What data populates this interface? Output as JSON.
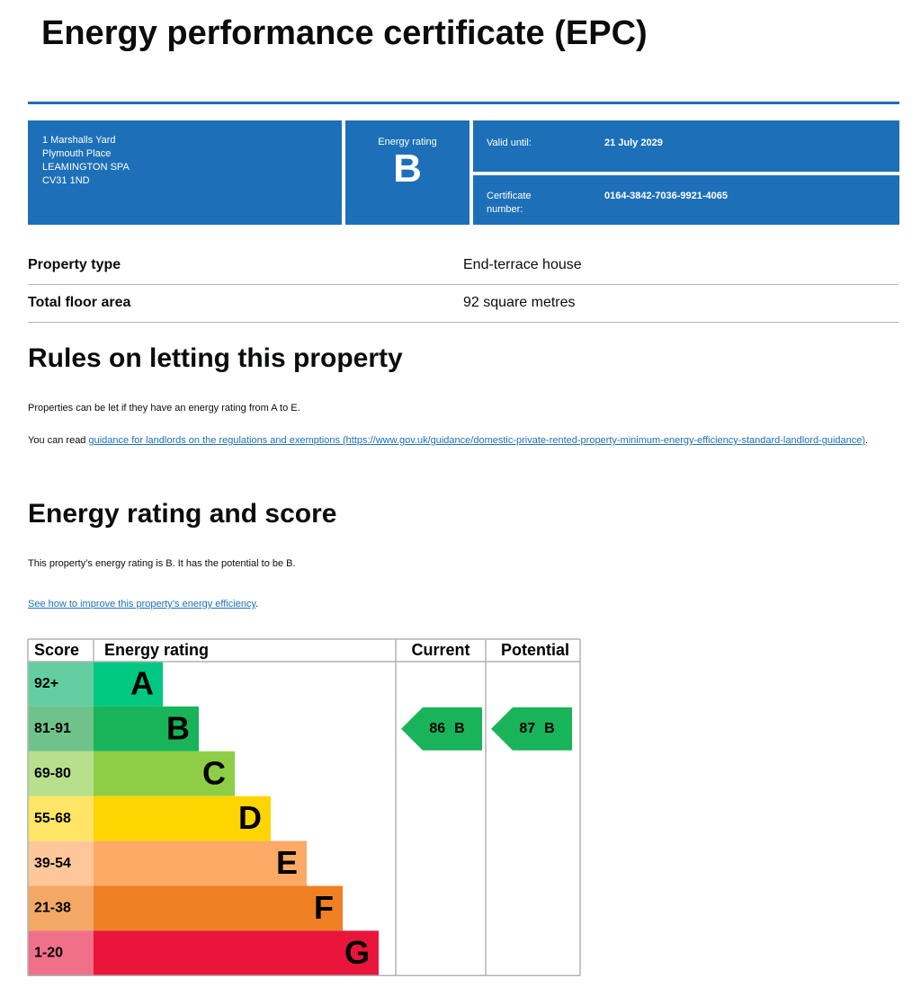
{
  "header": {
    "title": "Energy performance certificate (EPC)"
  },
  "summary": {
    "address": [
      "1 Marshalls Yard",
      "Plymouth Place",
      "LEAMINGTON SPA",
      "CV31 1ND"
    ],
    "rating_label": "Energy rating",
    "rating": "B",
    "valid_label": "Valid until:",
    "valid_until": "21 July 2029",
    "certificate_label": "Certificate number:",
    "certificate_number": "0164-3842-7036-9921-4065"
  },
  "property": {
    "rows": [
      [
        "Property type",
        "End-terrace house"
      ],
      [
        "Total floor area",
        "92 square metres"
      ]
    ]
  },
  "letting": {
    "heading": "Rules on letting this property",
    "text": "Properties can be let if they have an energy rating from A to E.",
    "link_prefix": "You can read",
    "link": "guidance for landlords on the regulations and exemptions (https://www.gov.uk/guidance/domestic-private-rented-property-minimum-energy-efficiency-standard-landlord-guidance)",
    "link_suffix": "."
  },
  "rating_section": {
    "heading": "Energy rating and score",
    "text": "This property’s energy rating is B. It has the potential to be B.",
    "link": "See how to improve this property’s energy efficiency",
    "link_suffix": "."
  },
  "rating_table": {
    "headers": [
      "Score",
      "Energy rating",
      "Current",
      "Potential"
    ],
    "bands": [
      {
        "score": "92+",
        "letter": "A",
        "color": "#00c781",
        "score_color": "#63cfa1"
      },
      {
        "score": "81-91",
        "letter": "B",
        "color": "#19b459",
        "score_color": "#6fc38a"
      },
      {
        "score": "69-80",
        "letter": "C",
        "color": "#8dce46",
        "score_color": "#b7e08c"
      },
      {
        "score": "55-68",
        "letter": "D",
        "color": "#ffd500",
        "score_color": "#ffe566"
      },
      {
        "score": "39-54",
        "letter": "E",
        "color": "#fcaa65",
        "score_color": "#fdc79a"
      },
      {
        "score": "21-38",
        "letter": "F",
        "color": "#ef8023",
        "score_color": "#f3a865"
      },
      {
        "score": "1-20",
        "letter": "G",
        "color": "#e9153b",
        "score_color": "#f0708a"
      }
    ],
    "current": {
      "score": 86,
      "band": "B"
    },
    "potential": {
      "score": 87,
      "band": "B"
    }
  }
}
